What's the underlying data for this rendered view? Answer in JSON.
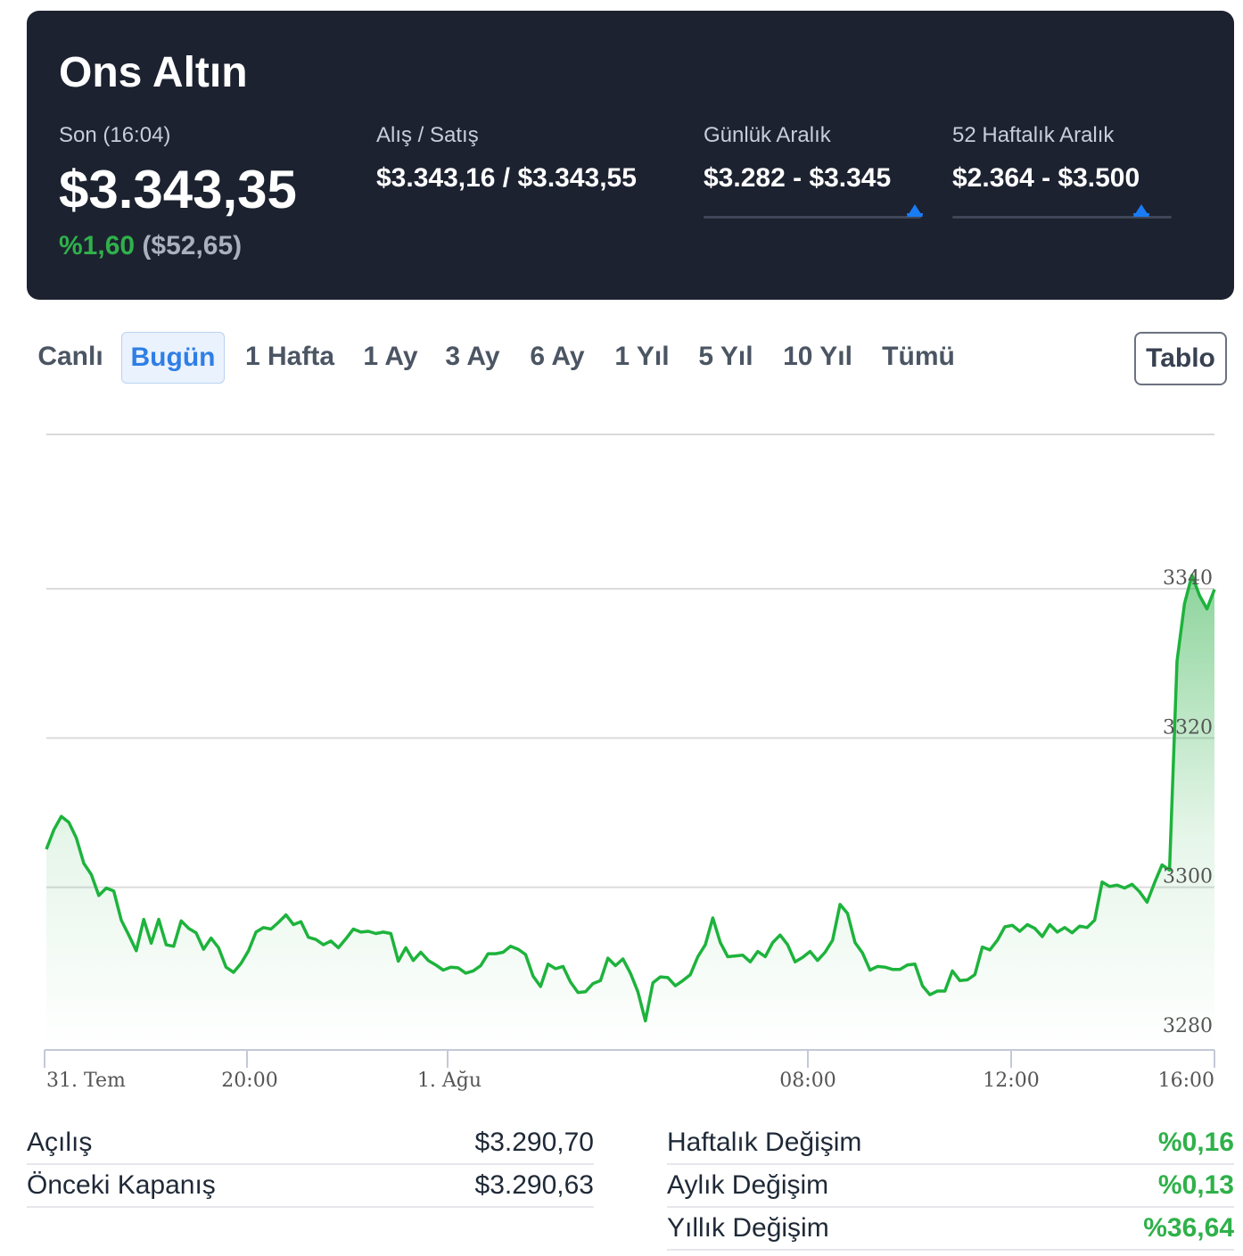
{
  "header": {
    "title": "Ons Altın",
    "last_label": "Son (16:04)",
    "last_price": "$3.343,35",
    "change_pct": "%1,60",
    "change_abs": "($52,65)",
    "bid_ask_label": "Alış / Satış",
    "bid_ask_value": "$3.343,16 / $3.343,55",
    "daily_range_label": "Günlük Aralık",
    "daily_range_value": "$3.282 - $3.345",
    "daily_range_position": 0.97,
    "week52_range_label": "52 Haftalık Aralık",
    "week52_range_value": "$2.364 - $3.500",
    "week52_range_position": 0.86
  },
  "colors": {
    "header_bg": "#1d2230",
    "positive": "#2fb14a",
    "accent": "#2f7ee6",
    "marker": "#1a7cf5"
  },
  "tabs": [
    {
      "label": "Canlı",
      "active": false
    },
    {
      "label": "Bugün",
      "active": true
    },
    {
      "label": "1 Hafta",
      "active": false
    },
    {
      "label": "1 Ay",
      "active": false
    },
    {
      "label": "3 Ay",
      "active": false
    },
    {
      "label": "6 Ay",
      "active": false
    },
    {
      "label": "1 Yıl",
      "active": false
    },
    {
      "label": "5 Yıl",
      "active": false
    },
    {
      "label": "10 Yıl",
      "active": false
    },
    {
      "label": "Tümü",
      "active": false
    }
  ],
  "table_button": "Tablo",
  "chart_data": {
    "type": "area",
    "x_ticks": [
      "31. Tem",
      "20:00",
      "1. Ağu",
      "08:00",
      "12:00",
      "16:00"
    ],
    "y_ticks": [
      3280,
      3300,
      3320,
      3340
    ],
    "ylim": [
      3278,
      3357
    ],
    "grid": true,
    "series": [
      {
        "values": [
          3305.1,
          3307.7,
          3309.5,
          3308.7,
          3306.6,
          3303.2,
          3301.7,
          3298.9,
          3299.9,
          3299.5,
          3295.6,
          3293.6,
          3291.5,
          3295.7,
          3292.5,
          3295.7,
          3292.3,
          3292.1,
          3295.5,
          3294.5,
          3293.9,
          3291.7,
          3293.2,
          3291.9,
          3289.3,
          3288.6,
          3289.8,
          3291.5,
          3294.0,
          3294.6,
          3294.4,
          3295.3,
          3296.3,
          3295.0,
          3295.4,
          3293.3,
          3293.0,
          3292.3,
          3292.8,
          3291.9,
          3293.1,
          3294.4,
          3294.0,
          3294.1,
          3293.8,
          3294.0,
          3293.8,
          3290.1,
          3291.9,
          3290.2,
          3291.3,
          3290.2,
          3289.6,
          3288.9,
          3289.3,
          3289.2,
          3288.5,
          3288.8,
          3289.5,
          3291.1,
          3291.1,
          3291.3,
          3292.1,
          3291.7,
          3291.0,
          3288.1,
          3286.7,
          3289.7,
          3289.1,
          3289.4,
          3287.3,
          3285.9,
          3286.0,
          3287.1,
          3287.5,
          3290.5,
          3289.5,
          3290.4,
          3288.5,
          3286.0,
          3282.1,
          3287.2,
          3288.0,
          3287.9,
          3286.8,
          3287.5,
          3288.3,
          3290.7,
          3292.3,
          3295.9,
          3292.6,
          3290.7,
          3290.8,
          3290.9,
          3290.0,
          3291.4,
          3290.7,
          3292.6,
          3293.6,
          3292.3,
          3290.0,
          3290.6,
          3291.4,
          3290.2,
          3291.3,
          3292.9,
          3297.7,
          3296.5,
          3292.6,
          3291.2,
          3288.9,
          3289.4,
          3289.3,
          3289.0,
          3289.0,
          3289.6,
          3289.7,
          3286.8,
          3285.6,
          3286.1,
          3286.1,
          3288.8,
          3287.5,
          3287.6,
          3288.3,
          3292.0,
          3291.6,
          3292.9,
          3294.7,
          3294.9,
          3294.1,
          3295.0,
          3294.5,
          3293.4,
          3295.0,
          3294.0,
          3294.6,
          3293.9,
          3294.8,
          3294.6,
          3295.6,
          3300.7,
          3300.1,
          3300.3,
          3299.9,
          3300.4,
          3299.4,
          3298.0,
          3300.6,
          3303.0,
          3302.3,
          3330.3,
          3338.0,
          3341.8,
          3339.1,
          3337.3,
          3339.9
        ]
      }
    ]
  },
  "stats_left": [
    {
      "label": "Açılış",
      "value": "$3.290,70"
    },
    {
      "label": "Önceki Kapanış",
      "value": "$3.290,63"
    }
  ],
  "stats_right": [
    {
      "label": "Haftalık Değişim",
      "value": "%0,16"
    },
    {
      "label": "Aylık Değişim",
      "value": "%0,13"
    },
    {
      "label": "Yıllık Değişim",
      "value": "%36,64"
    }
  ]
}
